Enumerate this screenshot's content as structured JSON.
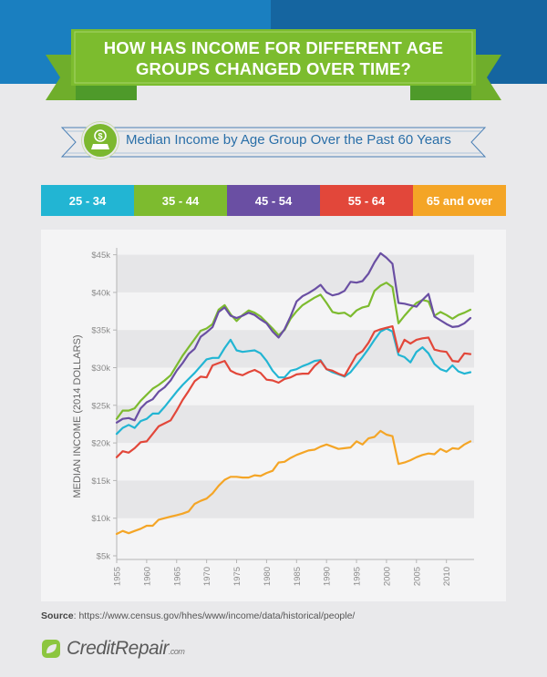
{
  "header": {
    "title_line1": "HOW HAS INCOME FOR DIFFERENT AGE",
    "title_line2": "GROUPS CHANGED OVER TIME?"
  },
  "subtitle": {
    "text": "Median Income by Age Group Over the Past 60 Years",
    "icon": "dollar-person-icon"
  },
  "legend": [
    {
      "label": "25 - 34",
      "color": "#22b5d3"
    },
    {
      "label": "35 - 44",
      "color": "#7dbb2f"
    },
    {
      "label": "45 - 54",
      "color": "#6a4fa3"
    },
    {
      "label": "55 - 64",
      "color": "#e2473a"
    },
    {
      "label": "65 and over",
      "color": "#f4a526"
    }
  ],
  "colors": {
    "banner_green": "#7cbc2e",
    "banner_dark_green": "#4e9a2a",
    "top_blue_left": "#1a7fc0",
    "top_blue_right": "#1565a0",
    "subtitle_blue": "#2a6fa8"
  },
  "chart_data": {
    "type": "line",
    "title": "Median Income by Age Group Over the Past 60 Years",
    "xlabel": "",
    "ylabel": "MEDIAN INCOME (2014 DOLLARS)",
    "xlim": [
      1955,
      2014
    ],
    "ylim": [
      5000,
      47000
    ],
    "grid": "alternating horizontal bands",
    "legend_position": "top",
    "x_ticks": [
      1955,
      1960,
      1965,
      1970,
      1975,
      1980,
      1985,
      1990,
      1995,
      2000,
      2005,
      2010
    ],
    "x_tick_labels": [
      "1955",
      "1960",
      "1965",
      "1970",
      "1975",
      "1980",
      "1985",
      "1990",
      "1995",
      "2000",
      "2005",
      "2010"
    ],
    "y_ticks": [
      5000,
      10000,
      15000,
      20000,
      25000,
      30000,
      35000,
      40000,
      45000
    ],
    "y_tick_labels": [
      "$5k",
      "$10k",
      "$15k",
      "$20k",
      "$25k",
      "$30k",
      "$35k",
      "$40k",
      "$45k"
    ],
    "x": [
      1955,
      1956,
      1957,
      1958,
      1959,
      1960,
      1961,
      1962,
      1963,
      1964,
      1965,
      1966,
      1967,
      1968,
      1969,
      1970,
      1971,
      1972,
      1973,
      1974,
      1975,
      1976,
      1977,
      1978,
      1979,
      1980,
      1981,
      1982,
      1983,
      1984,
      1985,
      1986,
      1987,
      1988,
      1989,
      1990,
      1991,
      1992,
      1993,
      1994,
      1995,
      1996,
      1997,
      1998,
      1999,
      2000,
      2001,
      2002,
      2003,
      2004,
      2005,
      2006,
      2007,
      2008,
      2009,
      2010,
      2011,
      2012,
      2013,
      2014
    ],
    "series": [
      {
        "name": "25 - 34",
        "color": "#22b5d3",
        "values": [
          21200,
          22000,
          22400,
          22000,
          22900,
          23200,
          23900,
          23900,
          24800,
          25800,
          26800,
          27700,
          28500,
          29300,
          30200,
          31100,
          31300,
          31300,
          32600,
          33700,
          32300,
          32100,
          32200,
          32300,
          31900,
          30900,
          29600,
          28700,
          28700,
          29600,
          29800,
          30200,
          30500,
          30900,
          31000,
          29800,
          29400,
          29100,
          28800,
          29400,
          30400,
          31400,
          32500,
          33700,
          34800,
          35200,
          34800,
          31700,
          31400,
          30700,
          32100,
          32700,
          31900,
          30500,
          29800,
          29500,
          30300,
          29500,
          29200,
          29400
        ]
      },
      {
        "name": "35 - 44",
        "color": "#7dbb2f",
        "values": [
          23200,
          24300,
          24300,
          24600,
          25600,
          26400,
          27200,
          27700,
          28300,
          29000,
          30300,
          31600,
          32700,
          33800,
          34900,
          35200,
          35800,
          37700,
          38300,
          37100,
          36200,
          37000,
          37600,
          37300,
          36800,
          36000,
          35200,
          34300,
          35000,
          36500,
          37500,
          38300,
          38800,
          39300,
          39700,
          38600,
          37400,
          37200,
          37300,
          36800,
          37600,
          38000,
          38200,
          40200,
          40900,
          41300,
          40700,
          35900,
          36900,
          37800,
          38600,
          39000,
          38800,
          36900,
          37400,
          37000,
          36500,
          37000,
          37300,
          37700
        ]
      },
      {
        "name": "45 - 54",
        "color": "#6a4fa3",
        "values": [
          22700,
          23200,
          23300,
          23000,
          24600,
          25400,
          25800,
          26800,
          27400,
          28300,
          29600,
          30600,
          31800,
          32500,
          34100,
          34700,
          35400,
          37400,
          38000,
          36900,
          36600,
          36900,
          37300,
          37000,
          36400,
          35900,
          34800,
          34000,
          35100,
          36800,
          38800,
          39500,
          39900,
          40400,
          41000,
          40000,
          39600,
          39800,
          40200,
          41400,
          41300,
          41500,
          42500,
          44000,
          45200,
          44600,
          43800,
          38600,
          38500,
          38300,
          38100,
          39000,
          39800,
          36800,
          36300,
          35800,
          35400,
          35500,
          35900,
          36600
        ]
      },
      {
        "name": "55 - 64",
        "color": "#e2473a",
        "values": [
          18100,
          18900,
          18700,
          19300,
          20100,
          20200,
          21200,
          22200,
          22600,
          23000,
          24300,
          25700,
          26900,
          28200,
          28800,
          28700,
          30300,
          30600,
          30900,
          29600,
          29200,
          29000,
          29400,
          29700,
          29300,
          28400,
          28300,
          28000,
          28500,
          28700,
          29100,
          29200,
          29200,
          30200,
          30900,
          29800,
          29600,
          29200,
          28900,
          30300,
          31700,
          32200,
          33300,
          34800,
          35100,
          35300,
          35500,
          32100,
          33700,
          33200,
          33700,
          33900,
          34000,
          32400,
          32200,
          32100,
          30900,
          30800,
          31900,
          31800
        ]
      },
      {
        "name": "65 and over",
        "color": "#f4a526",
        "values": [
          7900,
          8300,
          8000,
          8300,
          8600,
          9000,
          9000,
          9800,
          10000,
          10200,
          10400,
          10600,
          10900,
          11900,
          12300,
          12600,
          13300,
          14300,
          15100,
          15500,
          15500,
          15400,
          15400,
          15700,
          15600,
          16000,
          16300,
          17400,
          17500,
          18000,
          18400,
          18700,
          19000,
          19100,
          19500,
          19800,
          19500,
          19200,
          19300,
          19400,
          20200,
          19800,
          20600,
          20800,
          21600,
          21100,
          20900,
          17200,
          17400,
          17700,
          18100,
          18400,
          18600,
          18500,
          19200,
          18800,
          19300,
          19200,
          19800,
          20200
        ]
      }
    ]
  },
  "footer": {
    "source_label": "Source",
    "source_url": ": https://www.census.gov/hhes/www/income/data/historical/people/",
    "logo_text": "CreditRepair",
    "logo_suffix": ".com"
  }
}
